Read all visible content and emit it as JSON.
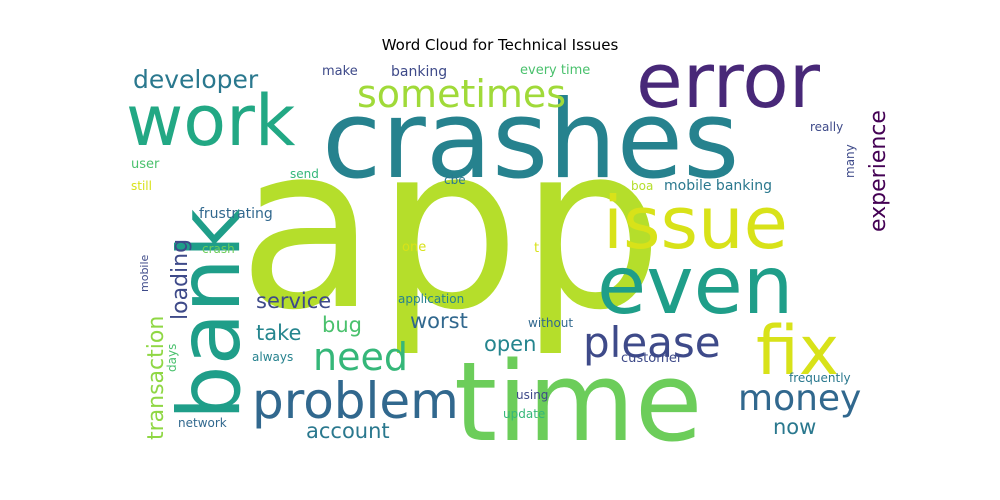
{
  "chart_data": {
    "type": "word_cloud",
    "title": "Word Cloud for Technical Issues",
    "words": [
      {
        "text": "app",
        "weight": 1.0,
        "color": "#b5de2b"
      },
      {
        "text": "crashes",
        "weight": 0.72,
        "color": "#26828e"
      },
      {
        "text": "time",
        "weight": 0.62,
        "color": "#6ccd5a"
      },
      {
        "text": "bank",
        "weight": 0.52,
        "color": "#1f9e89"
      },
      {
        "text": "error",
        "weight": 0.5,
        "color": "#482878"
      },
      {
        "text": "even",
        "weight": 0.48,
        "color": "#1f9e89"
      },
      {
        "text": "issue",
        "weight": 0.44,
        "color": "#d8e219"
      },
      {
        "text": "work",
        "weight": 0.42,
        "color": "#22a884"
      },
      {
        "text": "fix",
        "weight": 0.36,
        "color": "#d8e219"
      },
      {
        "text": "problem",
        "weight": 0.28,
        "color": "#31688e"
      },
      {
        "text": "please",
        "weight": 0.25,
        "color": "#3e4a89"
      },
      {
        "text": "sometimes",
        "weight": 0.24,
        "color": "#a0da39"
      },
      {
        "text": "need",
        "weight": 0.24,
        "color": "#35b779"
      },
      {
        "text": "money",
        "weight": 0.23,
        "color": "#31688e"
      },
      {
        "text": "developer",
        "weight": 0.15,
        "color": "#2a788e"
      },
      {
        "text": "experience",
        "weight": 0.14,
        "color": "#440154"
      },
      {
        "text": "loading",
        "weight": 0.13,
        "color": "#3e4a89"
      },
      {
        "text": "transaction",
        "weight": 0.14,
        "color": "#8fd744"
      },
      {
        "text": "service",
        "weight": 0.13,
        "color": "#3e4a89"
      },
      {
        "text": "worst",
        "weight": 0.12,
        "color": "#31688e"
      },
      {
        "text": "take",
        "weight": 0.12,
        "color": "#25858e"
      },
      {
        "text": "bug",
        "weight": 0.12,
        "color": "#4ac16d"
      },
      {
        "text": "open",
        "weight": 0.12,
        "color": "#25858e"
      },
      {
        "text": "account",
        "weight": 0.12,
        "color": "#2a788e"
      },
      {
        "text": "now",
        "weight": 0.12,
        "color": "#2a788e"
      },
      {
        "text": "mobile banking",
        "weight": 0.08,
        "color": "#2a788e"
      },
      {
        "text": "frustrating",
        "weight": 0.08,
        "color": "#31688e"
      },
      {
        "text": "banking",
        "weight": 0.08,
        "color": "#3e4a89"
      },
      {
        "text": "make",
        "weight": 0.07,
        "color": "#3e4a89"
      },
      {
        "text": "every time",
        "weight": 0.07,
        "color": "#4ac16d"
      },
      {
        "text": "really",
        "weight": 0.07,
        "color": "#3e4a89"
      },
      {
        "text": "many",
        "weight": 0.07,
        "color": "#3e4a89"
      },
      {
        "text": "user",
        "weight": 0.07,
        "color": "#4ac16d"
      },
      {
        "text": "send",
        "weight": 0.07,
        "color": "#35b779"
      },
      {
        "text": "cbe",
        "weight": 0.07,
        "color": "#2a788e"
      },
      {
        "text": "boa",
        "weight": 0.07,
        "color": "#b5de2b"
      },
      {
        "text": "still",
        "weight": 0.06,
        "color": "#d8e219"
      },
      {
        "text": "crash",
        "weight": 0.06,
        "color": "#6ccd5a"
      },
      {
        "text": "one",
        "weight": 0.07,
        "color": "#d8e219"
      },
      {
        "text": "t",
        "weight": 0.07,
        "color": "#d8e219"
      },
      {
        "text": "mobile",
        "weight": 0.06,
        "color": "#3e4a89"
      },
      {
        "text": "application",
        "weight": 0.07,
        "color": "#26828e"
      },
      {
        "text": "without",
        "weight": 0.07,
        "color": "#31688e"
      },
      {
        "text": "days",
        "weight": 0.06,
        "color": "#4ac16d"
      },
      {
        "text": "always",
        "weight": 0.07,
        "color": "#26828e"
      },
      {
        "text": "customer",
        "weight": 0.07,
        "color": "#3e4a89"
      },
      {
        "text": "frequently",
        "weight": 0.07,
        "color": "#2a788e"
      },
      {
        "text": "using",
        "weight": 0.07,
        "color": "#3e4a89"
      },
      {
        "text": "update",
        "weight": 0.07,
        "color": "#35b779"
      },
      {
        "text": "network",
        "weight": 0.07,
        "color": "#31688e"
      }
    ]
  }
}
